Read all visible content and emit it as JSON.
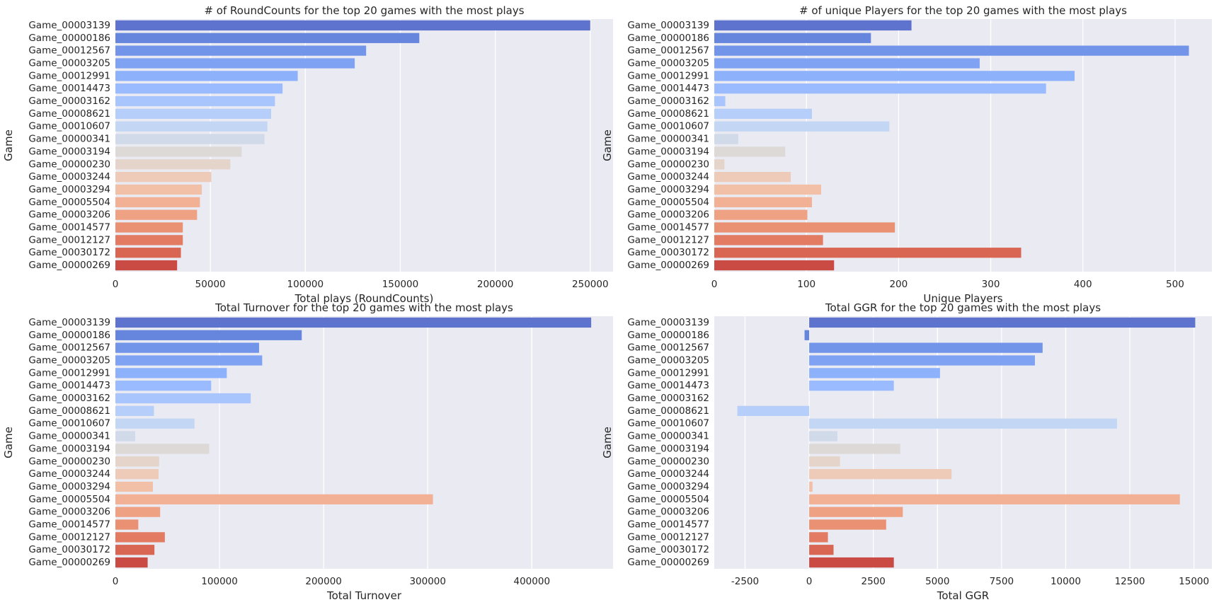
{
  "chart_data": [
    {
      "type": "bar",
      "orientation": "horizontal",
      "title": "# of RoundCounts for the top 20 games with the most plays",
      "xlabel": "Total plays (RoundCounts)",
      "ylabel": "Game",
      "categories": [
        "Game_00003139",
        "Game_00000186",
        "Game_00012567",
        "Game_00003205",
        "Game_00012991",
        "Game_00014473",
        "Game_00003162",
        "Game_00008621",
        "Game_00010607",
        "Game_00000341",
        "Game_00003194",
        "Game_00000230",
        "Game_00003244",
        "Game_00003294",
        "Game_00005504",
        "Game_00003206",
        "Game_00014577",
        "Game_00012127",
        "Game_00030172",
        "Game_00000269"
      ],
      "values": [
        250000,
        160000,
        132000,
        126000,
        96000,
        88000,
        84000,
        82000,
        80000,
        78500,
        66500,
        60500,
        50500,
        45500,
        44500,
        43000,
        35500,
        35500,
        34500,
        32500
      ],
      "xlim": [
        0,
        262000
      ],
      "xticks": [
        0,
        50000,
        100000,
        150000,
        200000,
        250000
      ],
      "xtick_labels": [
        "0",
        "50000",
        "100000",
        "150000",
        "200000",
        "250000"
      ],
      "grid": true,
      "palette": "coolwarm"
    },
    {
      "type": "bar",
      "orientation": "horizontal",
      "title": "# of unique Players for the top 20 games with the most plays",
      "xlabel": "Unique Players",
      "ylabel": "Game",
      "categories": [
        "Game_00003139",
        "Game_00000186",
        "Game_00012567",
        "Game_00003205",
        "Game_00012991",
        "Game_00014473",
        "Game_00003162",
        "Game_00008621",
        "Game_00010607",
        "Game_00000341",
        "Game_00003194",
        "Game_00000230",
        "Game_00003244",
        "Game_00003294",
        "Game_00005504",
        "Game_00003206",
        "Game_00014577",
        "Game_00012127",
        "Game_00030172",
        "Game_00000269"
      ],
      "values": [
        214,
        170,
        515,
        288,
        391,
        360,
        12,
        106,
        190,
        26,
        77,
        11,
        83,
        116,
        106,
        101,
        196,
        118,
        333,
        130
      ],
      "xlim": [
        0,
        540
      ],
      "xticks": [
        0,
        100,
        200,
        300,
        400,
        500
      ],
      "xtick_labels": [
        "0",
        "100",
        "200",
        "300",
        "400",
        "500"
      ],
      "grid": true,
      "palette": "coolwarm"
    },
    {
      "type": "bar",
      "orientation": "horizontal",
      "title": "Total Turnover for the top 20 games with the most plays",
      "xlabel": "Total Turnover",
      "ylabel": "Game",
      "categories": [
        "Game_00003139",
        "Game_00000186",
        "Game_00012567",
        "Game_00003205",
        "Game_00012991",
        "Game_00014473",
        "Game_00003162",
        "Game_00008621",
        "Game_00010607",
        "Game_00000341",
        "Game_00003194",
        "Game_00000230",
        "Game_00003244",
        "Game_00003294",
        "Game_00005504",
        "Game_00003206",
        "Game_00014577",
        "Game_00012127",
        "Game_00030172",
        "Game_00000269"
      ],
      "values": [
        457000,
        179000,
        138000,
        141000,
        107000,
        92000,
        130000,
        37000,
        76000,
        19000,
        90000,
        42000,
        41500,
        36000,
        305000,
        43000,
        22000,
        47500,
        37500,
        31000
      ],
      "xlim": [
        0,
        478000
      ],
      "xticks": [
        0,
        100000,
        200000,
        300000,
        400000
      ],
      "xtick_labels": [
        "0",
        "100000",
        "200000",
        "300000",
        "400000"
      ],
      "grid": true,
      "palette": "coolwarm"
    },
    {
      "type": "bar",
      "orientation": "horizontal",
      "title": "Total GGR for the top 20 games with the most plays",
      "xlabel": "Total GGR",
      "ylabel": "Game",
      "categories": [
        "Game_00003139",
        "Game_00000186",
        "Game_00012567",
        "Game_00003205",
        "Game_00012991",
        "Game_00014473",
        "Game_00003162",
        "Game_00008621",
        "Game_00010607",
        "Game_00000341",
        "Game_00003194",
        "Game_00000230",
        "Game_00003244",
        "Game_00003294",
        "Game_00005504",
        "Game_00003206",
        "Game_00014577",
        "Game_00012127",
        "Game_00030172",
        "Game_00000269"
      ],
      "values": [
        15050,
        -180,
        9100,
        8800,
        5100,
        3300,
        0,
        -2800,
        12000,
        1100,
        3550,
        1200,
        5550,
        130,
        14450,
        3650,
        3000,
        730,
        950,
        3300
      ],
      "xlim": [
        -3700,
        15700
      ],
      "xticks": [
        -2500,
        0,
        2500,
        5000,
        7500,
        10000,
        12500,
        15000
      ],
      "xtick_labels": [
        "-2500",
        "0",
        "2500",
        "5000",
        "7500",
        "10000",
        "12500",
        "15000"
      ],
      "grid": true,
      "palette": "coolwarm"
    }
  ],
  "colors": {
    "plot_background": "#eaeaf2",
    "grid": "#ffffff",
    "text": "#262626",
    "palette": [
      "#5d73cd",
      "#6685dc",
      "#7295e9",
      "#7fa2f3",
      "#8db1fb",
      "#9abbff",
      "#a8c6fd",
      "#b6cffa",
      "#c3d6f4",
      "#d1dae9",
      "#dcd9d7",
      "#e5d4c9",
      "#edcbb8",
      "#f1c0a6",
      "#f2b095",
      "#efa183",
      "#ea9073",
      "#e27b62",
      "#d86653",
      "#c94b44"
    ]
  }
}
